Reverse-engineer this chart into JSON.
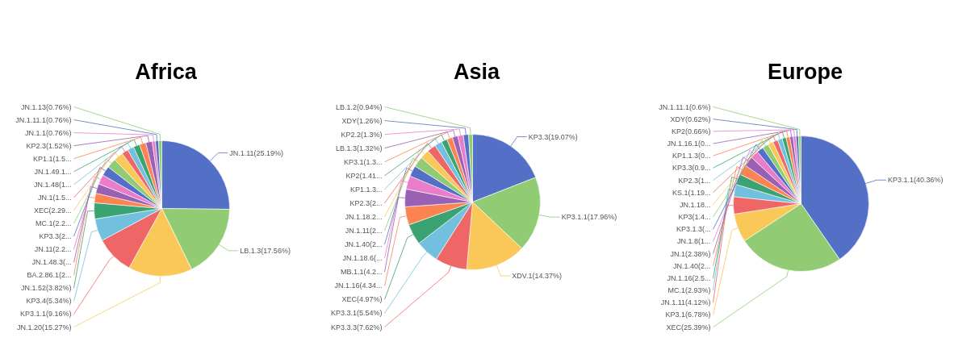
{
  "chart_data": [
    {
      "type": "pie",
      "title": "Africa",
      "categories": [
        "JN.1.11",
        "LB.1.3",
        "JN.1.20",
        "KP3.1.1",
        "KP3.4",
        "JN.1.52",
        "BA.2.86.1",
        "JN.1.48.3",
        "JN.11",
        "KP3.3",
        "MC.1",
        "XEC",
        "JN.1",
        "JN.1.48",
        "JN.1.49.1",
        "KP1.1",
        "KP2.3",
        "JN.1.1",
        "JN.1.11.1",
        "JN.1.13"
      ],
      "values": [
        25.19,
        17.56,
        15.27,
        9.16,
        5.34,
        3.82,
        2.29,
        2.29,
        2.29,
        2.29,
        2.29,
        2.29,
        1.53,
        1.53,
        1.53,
        1.53,
        1.52,
        0.76,
        0.76,
        0.76
      ],
      "value_labels": [
        "(25.19%)",
        "(17.56%)",
        "(15.27%)",
        "(9.16%)",
        "(5.34%)",
        "(3.82%)",
        "(2...",
        "(...",
        "(2.2...",
        "(2...",
        "(2.2...",
        "(2.29...",
        "(1.5...",
        "(1...",
        "...",
        "(1.5...",
        "(1.52%)",
        "(0.76%)",
        "(0.76%)",
        "(0.76%)"
      ],
      "colors": [
        "#5470c6",
        "#91cc75",
        "#fac858",
        "#ee6666",
        "#73c0de",
        "#3ba272",
        "#fc8452",
        "#9a60b4",
        "#ea7ccc",
        "#5470c6",
        "#91cc75",
        "#fac858",
        "#ee6666",
        "#73c0de",
        "#3ba272",
        "#fc8452",
        "#9a60b4",
        "#ea7ccc",
        "#5470c6",
        "#91cc75"
      ]
    },
    {
      "type": "pie",
      "title": "Asia",
      "categories": [
        "KP3.3",
        "KP3.1.1",
        "XDV.1",
        "KP3.3.3",
        "KP3.3.1",
        "XEC",
        "JN.1.16",
        "MB.1.1",
        "JN.1.18.6",
        "JN.1.40",
        "JN.1.11",
        "JN.1.18.2",
        "KP2.3",
        "KP1.1.3",
        "KP2",
        "KP3.1",
        "LB.1.3",
        "KP2.2",
        "XDY",
        "LB.1.2"
      ],
      "values": [
        19.07,
        17.96,
        14.37,
        7.62,
        5.54,
        4.97,
        4.34,
        4.21,
        3.2,
        2.6,
        2.5,
        2.2,
        2.1,
        1.74,
        1.41,
        1.35,
        1.32,
        1.3,
        1.26,
        0.94
      ],
      "value_labels": [
        "(19.07%)",
        "(17.96%)",
        "(14.37%)",
        "(7.62%)",
        "(5.54%)",
        "(4.97%)",
        "(4.34...",
        "(4.2...",
        "(...",
        "(2...",
        "(2...",
        "...",
        "(2...",
        "...",
        "(1.41...",
        "(1.3...",
        "(1.32%)",
        "(1.3%)",
        "(1.26%)",
        "(0.94%)"
      ],
      "colors": [
        "#5470c6",
        "#91cc75",
        "#fac858",
        "#ee6666",
        "#73c0de",
        "#3ba272",
        "#fc8452",
        "#9a60b4",
        "#ea7ccc",
        "#5470c6",
        "#91cc75",
        "#fac858",
        "#ee6666",
        "#73c0de",
        "#3ba272",
        "#fc8452",
        "#9a60b4",
        "#ea7ccc",
        "#5470c6",
        "#91cc75"
      ]
    },
    {
      "type": "pie",
      "title": "Europe",
      "categories": [
        "KP3.1.1",
        "XEC",
        "KP3.1",
        "JN.1.11",
        "MC.1",
        "JN.1.16",
        "JN.1.40",
        "JN.1",
        "JN.1.8",
        "KP3.1.3",
        "KP3",
        "JN.1.18",
        "KS.1",
        "KP2.3",
        "KP3.3",
        "KP1.1.3",
        "JN.1.16.1",
        "KP2",
        "XDY",
        "JN.1.11.1"
      ],
      "values": [
        40.36,
        25.39,
        6.78,
        4.12,
        2.93,
        2.55,
        2.45,
        2.38,
        1.9,
        1.6,
        1.45,
        1.3,
        1.19,
        1.1,
        0.95,
        0.9,
        0.77,
        0.66,
        0.62,
        0.6
      ],
      "value_labels": [
        "(40.36%)",
        "(25.39%)",
        "(6.78%)",
        "(4.12%)",
        "(2.93%)",
        "(2.5...",
        "(2...",
        "(2.38%)",
        "(1...",
        "(...",
        "(1.4...",
        "...",
        "(1.19...",
        "(1...",
        "(0.9...",
        "(0...",
        "(0...",
        "(0.66%)",
        "(0.62%)",
        "(0.6%)"
      ],
      "colors": [
        "#5470c6",
        "#91cc75",
        "#fac858",
        "#ee6666",
        "#73c0de",
        "#3ba272",
        "#fc8452",
        "#9a60b4",
        "#ea7ccc",
        "#5470c6",
        "#91cc75",
        "#fac858",
        "#ee6666",
        "#73c0de",
        "#3ba272",
        "#fc8452",
        "#9a60b4",
        "#ea7ccc",
        "#5470c6",
        "#91cc75"
      ]
    }
  ]
}
